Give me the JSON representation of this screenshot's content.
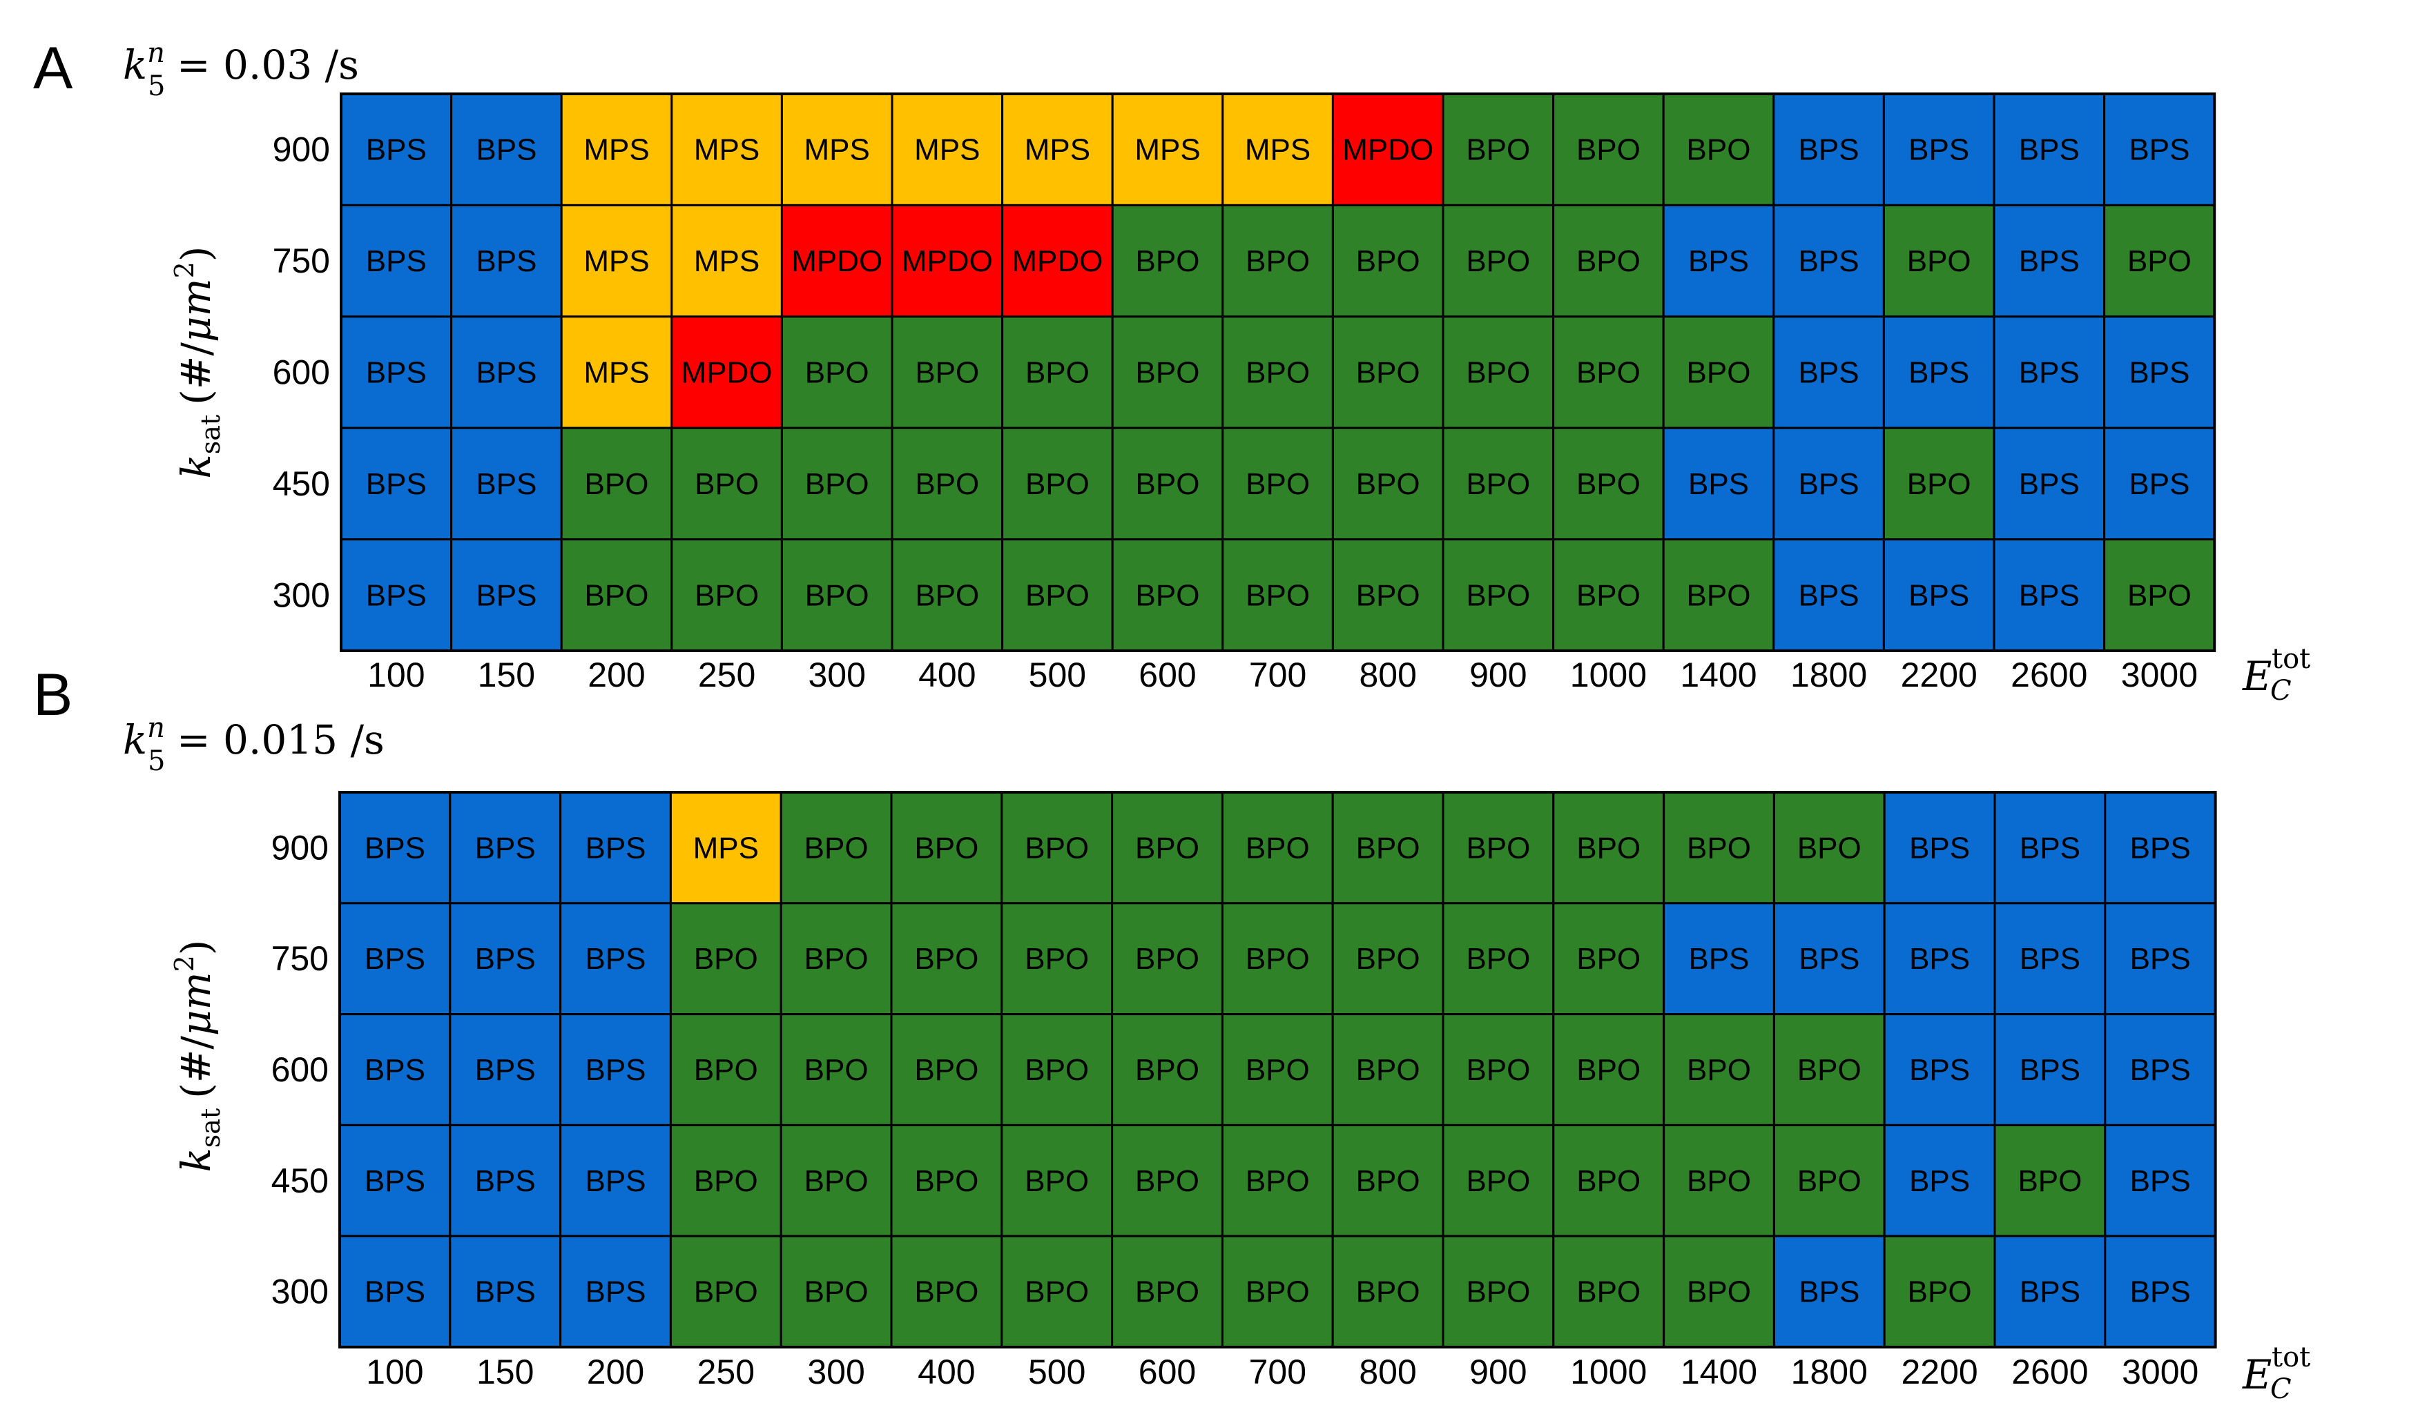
{
  "chart_data": [
    {
      "type": "heatmap",
      "panel_label": "A",
      "subtitle": {
        "symbol": "k",
        "subscript": "5",
        "superscript": "n",
        "value": "= 0.03 /s"
      },
      "ylabel": {
        "symbol": "k",
        "subscript": "sat",
        "unit_text": "(#/",
        "unit_mu": "μm",
        "unit_exp": "2",
        "unit_close": ")"
      },
      "xlabel": {
        "symbol": "E",
        "subscript": "C",
        "superscript": "tot"
      },
      "x": [
        "100",
        "150",
        "200",
        "250",
        "300",
        "400",
        "500",
        "600",
        "700",
        "800",
        "900",
        "1000",
        "1400",
        "1800",
        "2200",
        "2600",
        "3000"
      ],
      "y": [
        "900",
        "750",
        "600",
        "450",
        "300"
      ],
      "values": [
        [
          "BPS",
          "BPS",
          "MPS",
          "MPS",
          "MPS",
          "MPS",
          "MPS",
          "MPS",
          "MPS",
          "MPDO",
          "BPO",
          "BPO",
          "BPO",
          "BPS",
          "BPS",
          "BPS",
          "BPS"
        ],
        [
          "BPS",
          "BPS",
          "MPS",
          "MPS",
          "MPDO",
          "MPDO",
          "MPDO",
          "BPO",
          "BPO",
          "BPO",
          "BPO",
          "BPO",
          "BPS",
          "BPS",
          "BPO",
          "BPS",
          "BPO"
        ],
        [
          "BPS",
          "BPS",
          "MPS",
          "MPDO",
          "BPO",
          "BPO",
          "BPO",
          "BPO",
          "BPO",
          "BPO",
          "BPO",
          "BPO",
          "BPO",
          "BPS",
          "BPS",
          "BPS",
          "BPS"
        ],
        [
          "BPS",
          "BPS",
          "BPO",
          "BPO",
          "BPO",
          "BPO",
          "BPO",
          "BPO",
          "BPO",
          "BPO",
          "BPO",
          "BPO",
          "BPS",
          "BPS",
          "BPO",
          "BPS",
          "BPS"
        ],
        [
          "BPS",
          "BPS",
          "BPO",
          "BPO",
          "BPO",
          "BPO",
          "BPO",
          "BPO",
          "BPO",
          "BPO",
          "BPO",
          "BPO",
          "BPO",
          "BPS",
          "BPS",
          "BPS",
          "BPO"
        ]
      ]
    },
    {
      "type": "heatmap",
      "panel_label": "B",
      "subtitle": {
        "symbol": "k",
        "subscript": "5",
        "superscript": "n",
        "value": "= 0.015 /s"
      },
      "ylabel": {
        "symbol": "k",
        "subscript": "sat",
        "unit_text": "(#/",
        "unit_mu": "μm",
        "unit_exp": "2",
        "unit_close": ")"
      },
      "xlabel": {
        "symbol": "E",
        "subscript": "C",
        "superscript": "tot"
      },
      "x": [
        "100",
        "150",
        "200",
        "250",
        "300",
        "400",
        "500",
        "600",
        "700",
        "800",
        "900",
        "1000",
        "1400",
        "1800",
        "2200",
        "2600",
        "3000"
      ],
      "y": [
        "900",
        "750",
        "600",
        "450",
        "300"
      ],
      "values": [
        [
          "BPS",
          "BPS",
          "BPS",
          "MPS",
          "BPO",
          "BPO",
          "BPO",
          "BPO",
          "BPO",
          "BPO",
          "BPO",
          "BPO",
          "BPO",
          "BPO",
          "BPS",
          "BPS",
          "BPS"
        ],
        [
          "BPS",
          "BPS",
          "BPS",
          "BPO",
          "BPO",
          "BPO",
          "BPO",
          "BPO",
          "BPO",
          "BPO",
          "BPO",
          "BPO",
          "BPS",
          "BPS",
          "BPS",
          "BPS",
          "BPS"
        ],
        [
          "BPS",
          "BPS",
          "BPS",
          "BPO",
          "BPO",
          "BPO",
          "BPO",
          "BPO",
          "BPO",
          "BPO",
          "BPO",
          "BPO",
          "BPO",
          "BPO",
          "BPS",
          "BPS",
          "BPS"
        ],
        [
          "BPS",
          "BPS",
          "BPS",
          "BPO",
          "BPO",
          "BPO",
          "BPO",
          "BPO",
          "BPO",
          "BPO",
          "BPO",
          "BPO",
          "BPO",
          "BPO",
          "BPS",
          "BPO",
          "BPS"
        ],
        [
          "BPS",
          "BPS",
          "BPS",
          "BPO",
          "BPO",
          "BPO",
          "BPO",
          "BPO",
          "BPO",
          "BPO",
          "BPO",
          "BPO",
          "BPO",
          "BPS",
          "BPO",
          "BPS",
          "BPS"
        ]
      ]
    }
  ],
  "colors": {
    "BPS": "#0a6bd0",
    "BPO": "#2f8228",
    "MPS": "#ffc000",
    "MPDO": "#ff0000",
    "grid": "#000000"
  }
}
